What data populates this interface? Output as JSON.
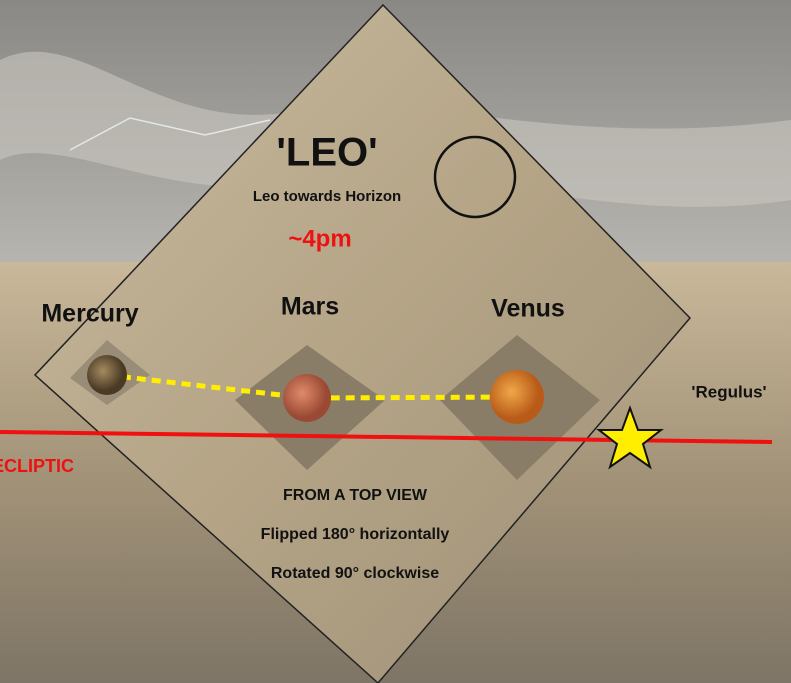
{
  "title": "'LEO'",
  "subtitle": "Leo towards Horizon",
  "time": "~4pm",
  "planets": [
    {
      "label": "Mercury"
    },
    {
      "label": "Mars"
    },
    {
      "label": "Venus"
    }
  ],
  "star": "'Regulus'",
  "line_label": "ECLIPTIC",
  "notes": [
    "FROM A TOP VIEW",
    "Flipped 180° horizontally",
    "Rotated 90° clockwise"
  ]
}
